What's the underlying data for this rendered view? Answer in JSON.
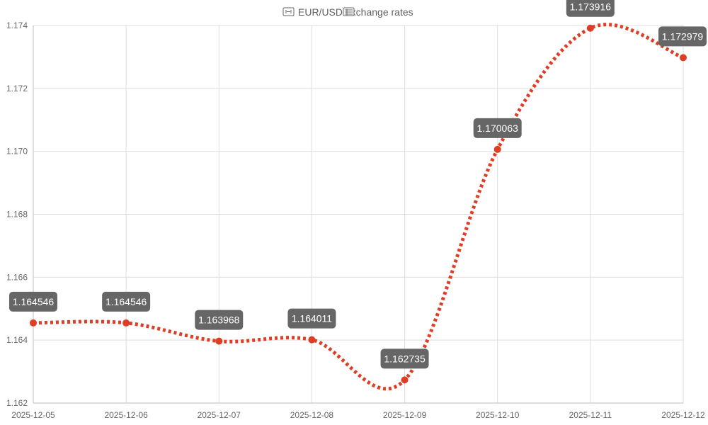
{
  "colors": {
    "accent": "#dd3e25",
    "grid": "#dedede",
    "axis": "#bdbdbd",
    "label_bg": "#666666",
    "label_text": "#ffffff",
    "title_text": "#5f5f5f",
    "tick_text": "#666666"
  },
  "chart_data": {
    "type": "line",
    "title": "EUR/USD exchange rates",
    "title_icons": [
      "eu-flag-icon",
      "us-flag-icon"
    ],
    "categories": [
      "2025-12-05",
      "2025-12-06",
      "2025-12-07",
      "2025-12-08",
      "2025-12-09",
      "2025-12-10",
      "2025-12-11",
      "2025-12-12"
    ],
    "values": [
      1.164546,
      1.164546,
      1.163968,
      1.164011,
      1.162735,
      1.170063,
      1.173916,
      1.172979
    ],
    "data_labels": [
      "1.164546",
      "1.164546",
      "1.163968",
      "1.164011",
      "1.162735",
      "1.170063",
      "1.173916",
      "1.172979"
    ],
    "ylim": [
      1.162,
      1.174
    ],
    "yticks": [
      1.162,
      1.164,
      1.166,
      1.168,
      1.17,
      1.172,
      1.174
    ],
    "ytick_labels": [
      "1.162",
      "1.164",
      "1.166",
      "1.168",
      "1.170",
      "1.172",
      "1.174"
    ],
    "xlabel": "",
    "ylabel": "",
    "grid": true,
    "legend": "none",
    "line_style": "dotted",
    "smooth": true
  }
}
